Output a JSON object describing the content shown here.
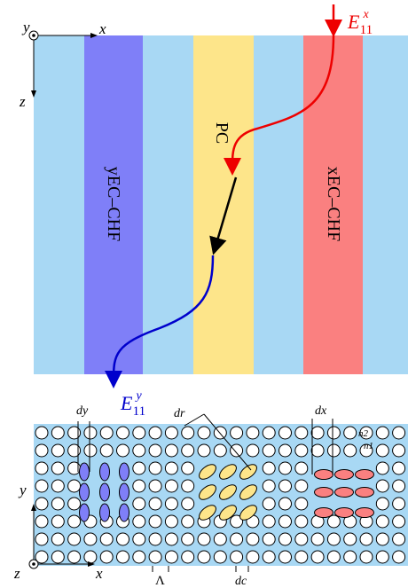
{
  "top_panel": {
    "axis_y": "y",
    "axis_x": "x",
    "axis_z": "z",
    "band_left": "yEC–CHF",
    "band_middle": "PC",
    "band_right": "xEC–CHF",
    "input_mode": {
      "symbol": "E",
      "superscript": "x",
      "subscript": "11"
    },
    "output_mode": {
      "symbol": "E",
      "superscript": "y",
      "subscript": "11"
    }
  },
  "bottom_panel": {
    "axis_y": "y",
    "axis_x": "x",
    "axis_z": "z",
    "label_dy": "dy",
    "label_dr": "dr",
    "label_dx": "dx",
    "label_n2": "n2",
    "label_n1": "n1",
    "label_period": "Λ",
    "label_dc": "dc"
  }
}
